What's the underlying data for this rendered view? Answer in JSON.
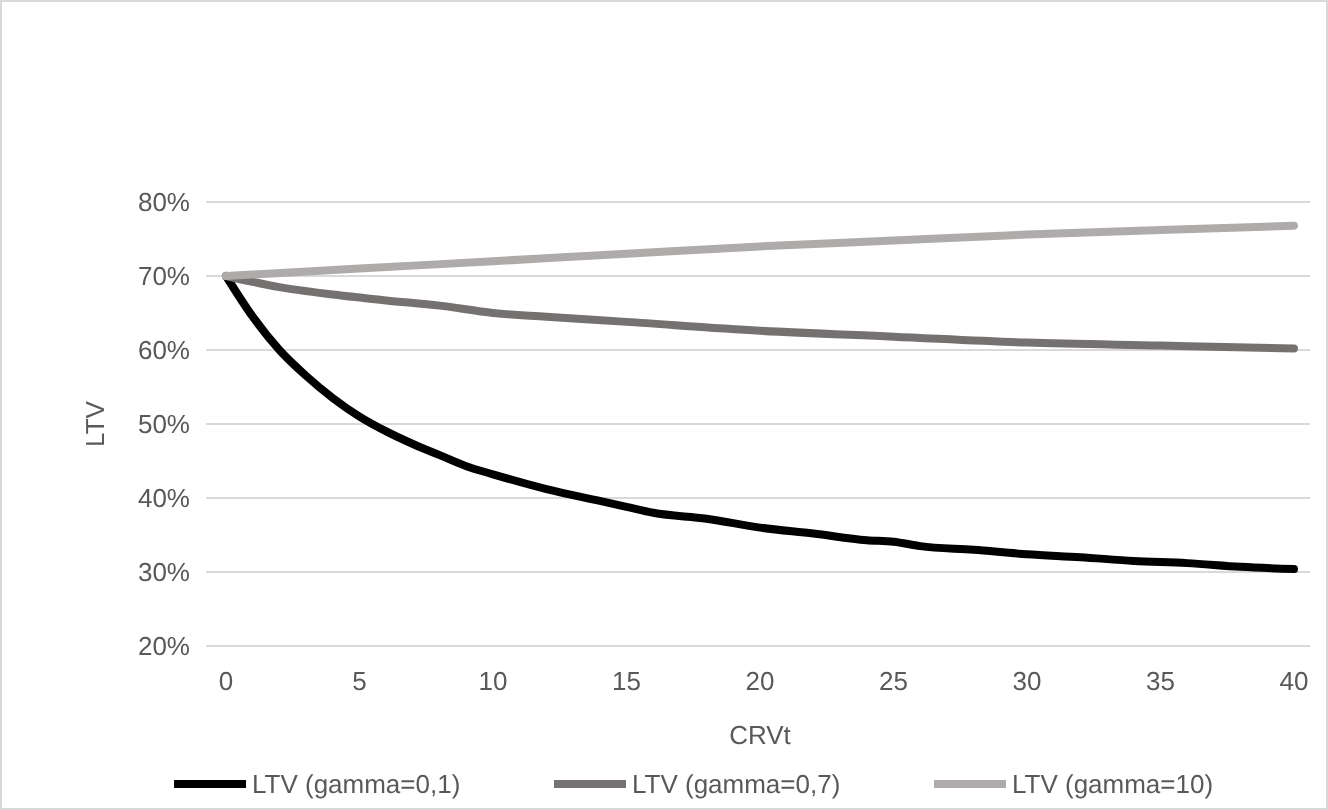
{
  "chart_data": {
    "type": "line",
    "xlabel": "CRVt",
    "ylabel": "LTV",
    "xlim": [
      -0.75,
      40.6
    ],
    "xticks": [
      0,
      5,
      10,
      15,
      20,
      25,
      30,
      35,
      40
    ],
    "ylim": [
      0.2,
      0.8
    ],
    "yticks": [
      {
        "value": 0.2,
        "label": "20%"
      },
      {
        "value": 0.3,
        "label": "30%"
      },
      {
        "value": 0.4,
        "label": "40%"
      },
      {
        "value": 0.5,
        "label": "50%"
      },
      {
        "value": 0.6,
        "label": "60%"
      },
      {
        "value": 0.7,
        "label": "70%"
      },
      {
        "value": 0.8,
        "label": "80%"
      }
    ],
    "grid": "y",
    "legend": "bottom",
    "marker": "none",
    "line_style": "solid",
    "x": [
      0,
      1,
      2,
      3,
      4,
      5,
      6,
      7,
      8,
      9,
      10,
      12,
      14,
      15,
      16,
      18,
      20,
      22,
      24,
      25,
      26,
      28,
      30,
      32,
      34,
      36,
      38,
      40
    ],
    "series": [
      {
        "name": "LTV (gamma=0,1)",
        "color": "#000000",
        "values": [
          0.7,
          0.645,
          0.6,
          0.565,
          0.535,
          0.51,
          0.49,
          0.473,
          0.458,
          0.443,
          0.432,
          0.412,
          0.396,
          0.388,
          0.38,
          0.372,
          0.36,
          0.352,
          0.343,
          0.341,
          0.335,
          0.33,
          0.324,
          0.32,
          0.315,
          0.312,
          0.307,
          0.304
        ]
      },
      {
        "name": "LTV (gamma=0,7)",
        "color": "#767171",
        "x": [
          0,
          2,
          4,
          6,
          8,
          10,
          12,
          15,
          20,
          25,
          30,
          35,
          40
        ],
        "values": [
          0.7,
          0.685,
          0.675,
          0.667,
          0.66,
          0.65,
          0.645,
          0.638,
          0.626,
          0.618,
          0.61,
          0.606,
          0.602
        ]
      },
      {
        "name": "LTV (gamma=10)",
        "color": "#afabab",
        "x": [
          0,
          5,
          10,
          15,
          20,
          25,
          30,
          35,
          40
        ],
        "values": [
          0.7,
          0.71,
          0.72,
          0.73,
          0.74,
          0.748,
          0.756,
          0.762,
          0.768
        ]
      }
    ]
  }
}
